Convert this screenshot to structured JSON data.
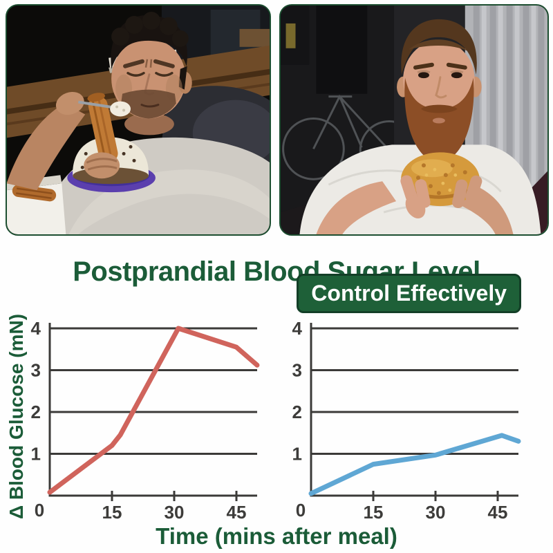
{
  "title": "Postprandial Blood Sugar Level",
  "badge_label": "Control Effectively",
  "colors": {
    "brand_green": "#1b5c38",
    "badge_bg": "#1e6038",
    "badge_border": "#133f27",
    "photo_frame": "#1c4e30",
    "axis": "#3b3a38",
    "tick_text": "#3d3c3a",
    "line_uncontrolled": "#d0645c",
    "line_controlled": "#5fa7d4"
  },
  "photos": {
    "left_description": "man lounging on a sofa eating churros and a cream dessert",
    "right_description": "bearded man in a white t-shirt eating a fried burger"
  },
  "chart_data": {
    "type": "line",
    "title": "Postprandial Blood Sugar Level",
    "xlabel": "Time (mins after meal)",
    "ylabel": "Δ Blood Glucose (mN)",
    "x_ticks": [
      0,
      15,
      30,
      45
    ],
    "y_ticks": [
      0,
      1,
      2,
      3,
      4
    ],
    "xlim": [
      0,
      50
    ],
    "ylim": [
      0,
      4
    ],
    "grid": "horizontal",
    "legend": "none",
    "charts": [
      {
        "id": "without-control",
        "line_color": "#d0645c",
        "x": [
          0,
          15,
          17,
          31,
          45,
          50
        ],
        "y": [
          0.08,
          1.2,
          1.45,
          4.0,
          3.55,
          3.12
        ]
      },
      {
        "id": "with-control",
        "line_color": "#5fa7d4",
        "x": [
          0,
          15,
          30,
          46,
          50
        ],
        "y": [
          0.05,
          0.75,
          0.97,
          1.44,
          1.3
        ]
      }
    ]
  }
}
